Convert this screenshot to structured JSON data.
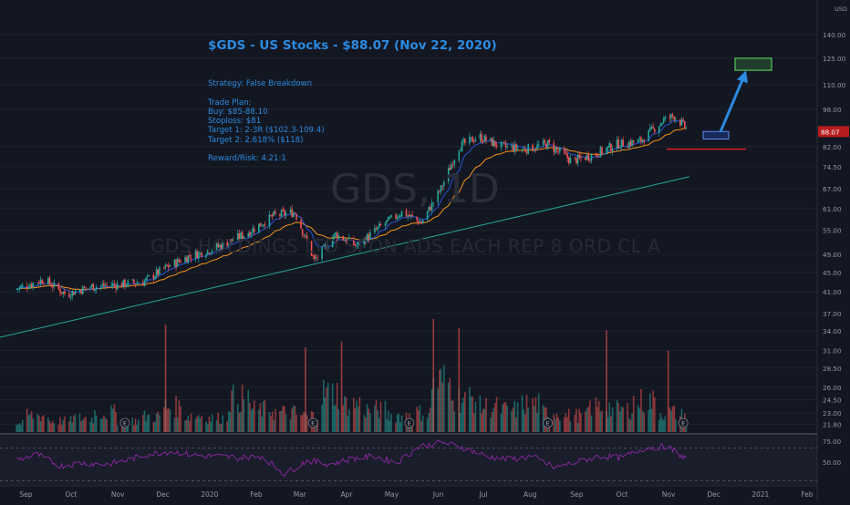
{
  "header": {
    "title": "$GDS - US Stocks - $88.07 (Nov 22, 2020)",
    "notes": [
      "Strategy: False Breakdown",
      "",
      "Trade Plan:",
      "Buy: $85-88.10",
      "Stoploss: $81",
      "Target 1: 2-3R ($102.3-109.4)",
      "Target 2: 2.618% ($118)",
      "",
      "Reward/Risk: 4.21:1"
    ]
  },
  "watermark": {
    "symbol": "GDS, 1D",
    "name": "GDS HOLDINGS LTD SPON ADS EACH REP 8 ORD CL A"
  },
  "currency_label": "USD",
  "last_price_label": "88.07",
  "earnings_marker": "E",
  "colors": {
    "background": "#131722",
    "up": "#26a69a",
    "down": "#ef5350",
    "ema_fast": "#2962ff",
    "ema_slow": "#f7931a",
    "sma_long": "#26a69a",
    "rsi": "#9c27b0",
    "annotation": "#2c8ae0",
    "target_box": "#4caf50",
    "stop_line": "#ff1e1e"
  },
  "chart_data": {
    "type": "candlestick",
    "x_labels": [
      "Sep",
      "Oct",
      "Nov",
      "Dec",
      "2020",
      "Feb",
      "Mar",
      "Apr",
      "May",
      "Jun",
      "Jul",
      "Aug",
      "Sep",
      "Oct",
      "Nov",
      "Dec",
      "2021",
      "Feb"
    ],
    "y_scale": "log",
    "y_ticks": [
      "21.80",
      "23.00",
      "24.50",
      "26.00",
      "28.50",
      "31.00",
      "34.00",
      "37.00",
      "41.00",
      "45.00",
      "49.00",
      "55.00",
      "61.00",
      "67.00",
      "74.50",
      "82.00",
      "98.00",
      "110.00",
      "125.00",
      "140.00"
    ],
    "ylim": [
      21,
      165
    ],
    "close_points": [
      {
        "x": "2019-09-01",
        "y": 41.5
      },
      {
        "x": "2019-09-20",
        "y": 43.5
      },
      {
        "x": "2019-10-05",
        "y": 40.5
      },
      {
        "x": "2019-10-20",
        "y": 42.0
      },
      {
        "x": "2019-11-10",
        "y": 42.5
      },
      {
        "x": "2019-11-25",
        "y": 43.0
      },
      {
        "x": "2019-12-10",
        "y": 46.0
      },
      {
        "x": "2019-12-25",
        "y": 48.5
      },
      {
        "x": "2020-01-15",
        "y": 51.0
      },
      {
        "x": "2020-02-01",
        "y": 54.0
      },
      {
        "x": "2020-02-20",
        "y": 59.0
      },
      {
        "x": "2020-03-05",
        "y": 60.0
      },
      {
        "x": "2020-03-18",
        "y": 47.5
      },
      {
        "x": "2020-04-01",
        "y": 54.0
      },
      {
        "x": "2020-04-15",
        "y": 51.0
      },
      {
        "x": "2020-05-01",
        "y": 56.0
      },
      {
        "x": "2020-05-15",
        "y": 60.0
      },
      {
        "x": "2020-05-28",
        "y": 57.0
      },
      {
        "x": "2020-06-10",
        "y": 67.0
      },
      {
        "x": "2020-06-22",
        "y": 82.0
      },
      {
        "x": "2020-07-05",
        "y": 86.0
      },
      {
        "x": "2020-07-20",
        "y": 82.0
      },
      {
        "x": "2020-08-05",
        "y": 81.0
      },
      {
        "x": "2020-08-20",
        "y": 83.0
      },
      {
        "x": "2020-09-05",
        "y": 76.5
      },
      {
        "x": "2020-09-20",
        "y": 79.0
      },
      {
        "x": "2020-10-05",
        "y": 83.0
      },
      {
        "x": "2020-10-20",
        "y": 84.0
      },
      {
        "x": "2020-11-05",
        "y": 93.0
      },
      {
        "x": "2020-11-12",
        "y": 95.0
      },
      {
        "x": "2020-11-22",
        "y": 88.07
      }
    ],
    "volume_levels": [
      0.15,
      0.3,
      0.2,
      0.25,
      0.35,
      0.2,
      0.28,
      0.45,
      0.3,
      0.25,
      0.6,
      0.4,
      0.35,
      0.3,
      0.7,
      0.5,
      0.4,
      0.3,
      0.35,
      0.9,
      0.6,
      0.45,
      0.4,
      0.5,
      0.35,
      0.3,
      0.45,
      0.4,
      0.55,
      0.35,
      0.3
    ],
    "volume_spikes": [
      {
        "x": "2019-12-10",
        "level": 0.95
      },
      {
        "x": "2020-03-12",
        "level": 0.75
      },
      {
        "x": "2020-04-05",
        "level": 0.8
      },
      {
        "x": "2020-06-05",
        "level": 1.0
      },
      {
        "x": "2020-06-22",
        "level": 0.92
      },
      {
        "x": "2020-09-28",
        "level": 0.9
      },
      {
        "x": "2020-11-08",
        "level": 0.72
      }
    ],
    "earnings_dates": [
      "2019-11-13",
      "2020-03-17",
      "2020-05-20",
      "2020-08-20",
      "2020-11-18"
    ],
    "rsi": {
      "ticks": [
        "75.00",
        "50.00"
      ],
      "values": [
        55,
        62,
        48,
        52,
        50,
        55,
        63,
        66,
        61,
        60,
        58,
        60,
        38,
        55,
        50,
        57,
        60,
        52,
        72,
        77,
        70,
        60,
        56,
        60,
        46,
        53,
        60,
        58,
        70,
        72,
        55
      ]
    },
    "overlays": {
      "target_zone": [
        118,
        125
      ],
      "buy_zone": [
        85,
        88.1
      ],
      "stop_level": 81,
      "arrow": {
        "from": {
          "x": "2020-11-22",
          "y": 88
        },
        "to": {
          "x": "2020-12-05",
          "y": 120
        }
      }
    }
  }
}
